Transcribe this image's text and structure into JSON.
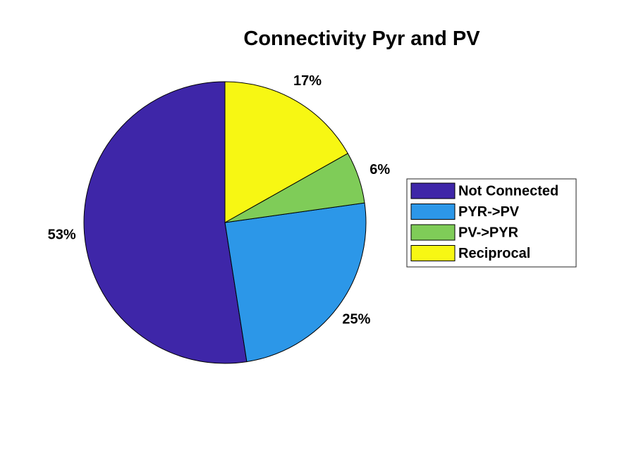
{
  "chart_data": {
    "type": "pie",
    "title": "Connectivity Pyr and PV",
    "start_angle": "12 o'clock, counterclockwise",
    "slices": [
      {
        "name": "Not Connected",
        "value": 53,
        "label": "53%",
        "color": "#3e26a8"
      },
      {
        "name": "PYR->PV",
        "value": 25,
        "label": "25%",
        "color": "#2c97e8"
      },
      {
        "name": "PV->PYR",
        "value": 6,
        "label": "6%",
        "color": "#7fcc58"
      },
      {
        "name": "Reciprocal",
        "value": 17,
        "label": "17%",
        "color": "#f7f713"
      }
    ],
    "legend": {
      "position": "right",
      "entries": [
        "Not Connected",
        "PYR->PV",
        "PV->PYR",
        "Reciprocal"
      ]
    }
  }
}
